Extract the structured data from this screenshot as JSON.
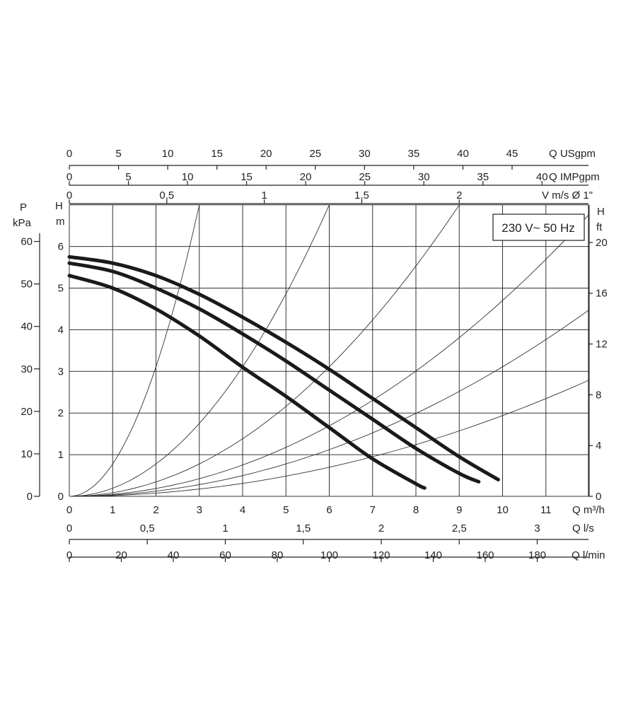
{
  "chart_data": {
    "type": "line",
    "title": "",
    "annotation": "230 V~ 50 Hz",
    "x_main": {
      "label": "Q m³/h",
      "range": [
        0,
        12
      ],
      "ticks": [
        0,
        1,
        2,
        3,
        4,
        5,
        6,
        7,
        8,
        9,
        10,
        11
      ]
    },
    "y_main": {
      "label_top": "H",
      "label_unit": "m",
      "range": [
        0,
        7
      ],
      "ticks": [
        0,
        1,
        2,
        3,
        4,
        5,
        6
      ]
    },
    "y_pressure": {
      "label_top": "P",
      "label_unit": "kPa",
      "ticks": [
        0,
        10,
        20,
        30,
        40,
        50,
        60
      ],
      "values_m": [
        0,
        1.02,
        2.04,
        3.06,
        4.08,
        5.1,
        6.12
      ]
    },
    "y_feet": {
      "label_top": "H",
      "label_unit": "ft",
      "ticks": [
        0,
        4,
        8,
        12,
        16,
        20
      ],
      "values_m": [
        0,
        1.219,
        2.438,
        3.658,
        4.877,
        6.096
      ]
    },
    "x_usgpm": {
      "label": "Q USgpm",
      "ticks": [
        0,
        5,
        10,
        15,
        20,
        25,
        30,
        35,
        40,
        45
      ],
      "values_m3h": [
        0,
        1.136,
        2.271,
        3.407,
        4.542,
        5.678,
        6.814,
        7.949,
        9.085,
        10.22
      ]
    },
    "x_impgpm": {
      "label": "Q IMPgpm",
      "ticks": [
        0,
        5,
        10,
        15,
        20,
        25,
        30,
        35,
        40
      ],
      "values_m3h": [
        0,
        1.364,
        2.728,
        4.091,
        5.455,
        6.819,
        8.183,
        9.547,
        10.91
      ]
    },
    "x_velocity": {
      "label": "V m/s Ø 1\"",
      "ticks": [
        "0",
        "0,5",
        "1",
        "1,5",
        "2"
      ],
      "values_m3h": [
        0,
        2.25,
        4.5,
        6.75,
        9.0
      ]
    },
    "x_ls": {
      "label": "Q l/s",
      "ticks": [
        "0",
        "0,5",
        "1",
        "1,5",
        "2",
        "2,5",
        "3"
      ],
      "values_m3h": [
        0,
        1.8,
        3.6,
        5.4,
        7.2,
        9.0,
        10.8
      ]
    },
    "x_lmin": {
      "label": "Q l/min",
      "ticks": [
        0,
        20,
        40,
        60,
        80,
        100,
        120,
        140,
        160,
        180
      ],
      "values_m3h": [
        0,
        1.2,
        2.4,
        3.6,
        4.8,
        6.0,
        7.2,
        8.4,
        9.6,
        10.8
      ]
    },
    "series": [
      {
        "x": [
          0,
          1,
          2,
          3,
          4,
          5,
          6,
          7,
          8,
          9,
          9.9
        ],
        "y": [
          5.75,
          5.6,
          5.3,
          4.85,
          4.3,
          3.7,
          3.05,
          2.35,
          1.65,
          0.95,
          0.4
        ]
      },
      {
        "x": [
          0,
          1,
          2,
          3,
          4,
          5,
          6,
          7,
          8,
          9,
          9.45
        ],
        "y": [
          5.6,
          5.4,
          5.0,
          4.5,
          3.9,
          3.25,
          2.55,
          1.85,
          1.15,
          0.55,
          0.35
        ]
      },
      {
        "x": [
          0,
          1,
          2,
          3,
          4,
          5,
          6,
          7,
          8,
          8.2
        ],
        "y": [
          5.3,
          5.0,
          4.5,
          3.85,
          3.1,
          2.4,
          1.65,
          0.9,
          0.3,
          0.2
        ]
      }
    ],
    "system_curves": {
      "x_at_top": [
        3.0,
        6.0,
        9.0,
        12.2,
        15.0,
        19.0
      ],
      "h_top": 7.0
    },
    "grid": true
  }
}
